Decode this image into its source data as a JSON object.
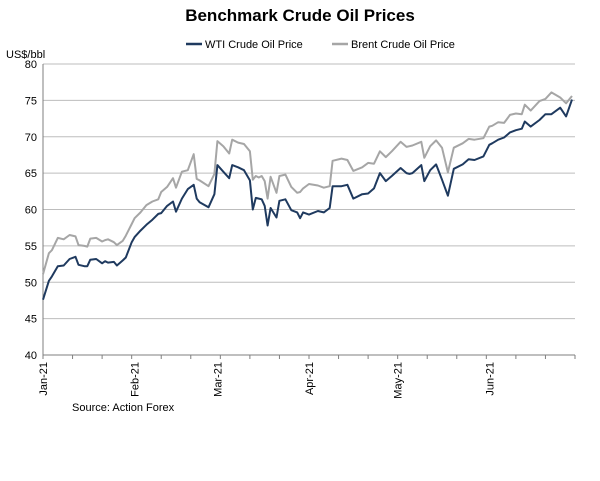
{
  "chart_data": {
    "type": "line",
    "title": "Benchmark Crude Oil Prices",
    "ylabel": "US$/bbl",
    "xlabel": "",
    "ylim": [
      40,
      80
    ],
    "yticks": [
      40,
      45,
      50,
      55,
      60,
      65,
      70,
      75,
      80
    ],
    "grid": true,
    "legend": "top-center",
    "source": "Source: Action Forex",
    "x_tick_labels": [
      "Jan-21",
      "Feb-21",
      "Mar-21",
      "Apr-21",
      "May-21",
      "Jun-21"
    ],
    "x_tick_days": [
      0,
      31,
      59,
      90,
      120,
      151
    ],
    "x_range": [
      0,
      180
    ],
    "series": [
      {
        "name": "WTI Crude Oil Price",
        "color": "#1f3a5f",
        "x": [
          0,
          2,
          3,
          5,
          7,
          9,
          11,
          12,
          14,
          15,
          16,
          18,
          20,
          21,
          22,
          24,
          25,
          27,
          28,
          30,
          31,
          33,
          35,
          37,
          39,
          40,
          42,
          44,
          45,
          47,
          49,
          51,
          52,
          53,
          56,
          58,
          59,
          61,
          63,
          64,
          66,
          68,
          70,
          71,
          72,
          73,
          74,
          75,
          76,
          77,
          79,
          80,
          82,
          84,
          86,
          87,
          88,
          90,
          93,
          95,
          97,
          98,
          101,
          103,
          105,
          108,
          110,
          112,
          114,
          116,
          118,
          121,
          123,
          124,
          125,
          128,
          129,
          131,
          133,
          135,
          137,
          139,
          142,
          144,
          146,
          149,
          151,
          152,
          154,
          156,
          158,
          160,
          162,
          163,
          165,
          168,
          170,
          172,
          175,
          177,
          179
        ],
        "values": [
          47.6,
          50.2,
          50.8,
          52.2,
          52.3,
          53.2,
          53.5,
          52.4,
          52.2,
          52.2,
          53.1,
          53.2,
          52.6,
          52.9,
          52.7,
          52.8,
          52.3,
          53.0,
          53.4,
          55.5,
          56.2,
          57.1,
          57.9,
          58.6,
          59.4,
          59.5,
          60.5,
          61.1,
          59.7,
          61.5,
          62.8,
          63.4,
          61.5,
          61.0,
          60.3,
          62.1,
          66.1,
          65.2,
          64.3,
          66.1,
          65.8,
          65.4,
          64.0,
          60.0,
          61.6,
          61.5,
          61.4,
          60.5,
          57.8,
          60.2,
          58.9,
          61.2,
          61.4,
          59.9,
          59.6,
          58.8,
          59.6,
          59.3,
          59.8,
          59.6,
          60.2,
          63.2,
          63.2,
          63.4,
          61.5,
          62.1,
          62.2,
          62.9,
          65.0,
          63.9,
          64.6,
          65.7,
          65.0,
          64.9,
          65.0,
          66.1,
          63.9,
          65.4,
          66.2,
          64.1,
          61.9,
          65.6,
          66.2,
          66.9,
          66.8,
          67.3,
          68.9,
          69.1,
          69.6,
          69.9,
          70.6,
          70.9,
          71.1,
          72.1,
          71.4,
          72.3,
          73.1,
          73.1,
          74.0,
          72.8,
          75.1
        ]
      },
      {
        "name": "Brent Crude Oil Price",
        "color": "#a6a6a6",
        "x": [
          0,
          2,
          3,
          5,
          7,
          9,
          11,
          12,
          14,
          15,
          16,
          18,
          20,
          21,
          22,
          24,
          25,
          27,
          28,
          30,
          31,
          33,
          35,
          37,
          39,
          40,
          42,
          44,
          45,
          47,
          49,
          51,
          52,
          53,
          56,
          58,
          59,
          61,
          63,
          64,
          66,
          68,
          70,
          71,
          72,
          73,
          74,
          75,
          76,
          77,
          79,
          80,
          82,
          84,
          86,
          87,
          88,
          90,
          93,
          95,
          97,
          98,
          101,
          103,
          105,
          108,
          110,
          112,
          114,
          116,
          118,
          121,
          123,
          124,
          125,
          128,
          129,
          131,
          133,
          135,
          137,
          139,
          142,
          144,
          146,
          149,
          151,
          152,
          154,
          156,
          158,
          160,
          162,
          163,
          165,
          168,
          170,
          172,
          175,
          177,
          179
        ],
        "values": [
          51.1,
          54.0,
          54.4,
          56.1,
          55.9,
          56.5,
          56.3,
          55.1,
          55.0,
          54.9,
          56.0,
          56.1,
          55.6,
          55.8,
          55.9,
          55.5,
          55.1,
          55.7,
          56.4,
          58.0,
          58.8,
          59.6,
          60.6,
          61.1,
          61.4,
          62.4,
          63.1,
          64.3,
          63.0,
          65.2,
          65.4,
          67.6,
          64.2,
          64.0,
          63.2,
          64.9,
          69.4,
          68.7,
          67.7,
          69.6,
          69.2,
          69.0,
          68.0,
          64.1,
          64.6,
          64.4,
          64.6,
          63.9,
          61.5,
          64.5,
          62.3,
          64.6,
          64.8,
          63.1,
          62.3,
          62.4,
          62.9,
          63.5,
          63.3,
          63.0,
          63.2,
          66.7,
          67.0,
          66.8,
          65.3,
          65.8,
          66.4,
          66.3,
          68.0,
          67.2,
          68.0,
          69.3,
          68.6,
          68.7,
          68.8,
          69.3,
          67.1,
          68.7,
          69.5,
          68.5,
          65.1,
          68.5,
          69.1,
          69.7,
          69.6,
          69.8,
          71.4,
          71.5,
          72.0,
          71.9,
          73.0,
          73.2,
          73.1,
          74.4,
          73.6,
          74.9,
          75.2,
          76.1,
          75.4,
          74.6,
          75.6
        ]
      }
    ]
  }
}
